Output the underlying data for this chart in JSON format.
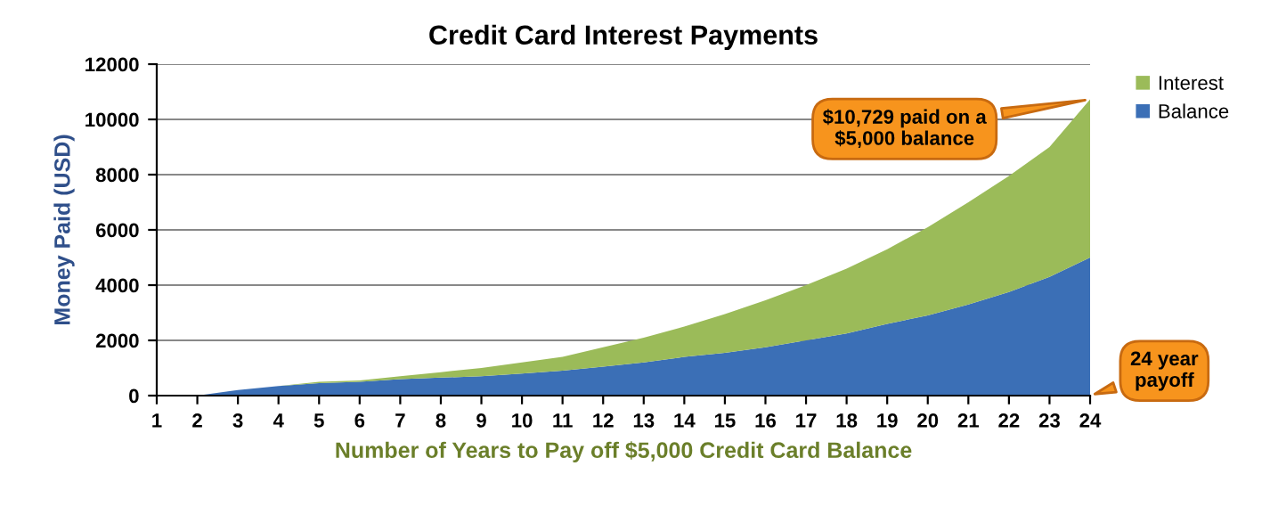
{
  "chart_data": {
    "type": "area",
    "stacked": true,
    "title": "Credit Card Interest Payments",
    "xlabel": "Number of Years to Pay off $5,000 Credit Card Balance",
    "ylabel": "Money Paid (USD)",
    "xlim": [
      1,
      24
    ],
    "xticks": [
      1,
      2,
      3,
      4,
      5,
      6,
      7,
      8,
      9,
      10,
      11,
      12,
      13,
      14,
      15,
      16,
      17,
      18,
      19,
      20,
      21,
      22,
      23,
      24
    ],
    "ylim": [
      0,
      12000
    ],
    "yticks": [
      0,
      2000,
      4000,
      6000,
      8000,
      10000,
      12000
    ],
    "grid": "y",
    "legend": "right",
    "series": [
      {
        "name": "Balance",
        "color": "#3b6fb6",
        "x": [
          2,
          3,
          4,
          5,
          6,
          7,
          8,
          9,
          10,
          11,
          12,
          13,
          14,
          15,
          16,
          17,
          18,
          19,
          20,
          21,
          22,
          23,
          24
        ],
        "values": [
          0,
          200,
          350,
          450,
          500,
          600,
          650,
          700,
          800,
          900,
          1050,
          1200,
          1400,
          1550,
          1750,
          2000,
          2250,
          2600,
          2900,
          3300,
          3750,
          4300,
          5000
        ]
      },
      {
        "name": "Interest",
        "color": "#9bbb59",
        "x": [
          2,
          3,
          4,
          5,
          6,
          7,
          8,
          9,
          10,
          11,
          12,
          13,
          14,
          15,
          16,
          17,
          18,
          19,
          20,
          21,
          22,
          23,
          24
        ],
        "values": [
          0,
          0,
          0,
          50,
          50,
          100,
          200,
          300,
          400,
          500,
          700,
          900,
          1100,
          1400,
          1700,
          2000,
          2350,
          2700,
          3200,
          3700,
          4200,
          4700,
          5729
        ]
      }
    ],
    "annotations": [
      {
        "text": "$10,729 paid on a\n$5,000 balance",
        "x": 24,
        "y": 10729
      },
      {
        "text": "24 year\npayoff",
        "x": 24,
        "y": 0
      }
    ]
  }
}
